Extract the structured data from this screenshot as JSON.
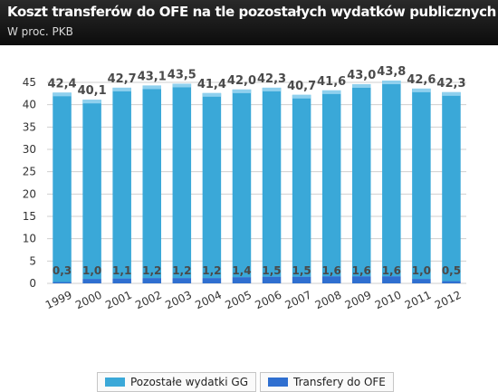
{
  "header": {
    "title": "Koszt transferów do OFE na  tle pozostałych wydatków publicznych",
    "subtitle": "W proc. PKB"
  },
  "chart_data": {
    "type": "bar",
    "stacked": true,
    "categories": [
      "1999",
      "2000",
      "2001",
      "2002",
      "2003",
      "2004",
      "2005",
      "2006",
      "2007",
      "2008",
      "2009",
      "2010",
      "2011",
      "2012"
    ],
    "series": [
      {
        "name": "Pozostałe wydatki GG",
        "color": "#3aa8d8",
        "values": [
          42.4,
          40.1,
          42.7,
          43.1,
          43.5,
          41.4,
          42.0,
          42.3,
          40.7,
          41.6,
          43.0,
          43.8,
          42.6,
          42.3
        ]
      },
      {
        "name": "Transfery do OFE",
        "color": "#2f6fd0",
        "values": [
          0.3,
          1.0,
          1.1,
          1.2,
          1.2,
          1.2,
          1.4,
          1.5,
          1.5,
          1.6,
          1.6,
          1.6,
          1.0,
          0.5
        ]
      }
    ],
    "top_labels": [
      "42,4",
      "40,1",
      "42,7",
      "43,1",
      "43,5",
      "41,4",
      "42,0",
      "42,3",
      "40,7",
      "41,6",
      "43,0",
      "43,8",
      "42,6",
      "42,3"
    ],
    "ofe_labels": [
      "0,3",
      "1,0",
      "1,1",
      "1,2",
      "1,2",
      "1,2",
      "1,4",
      "1,5",
      "1,5",
      "1,6",
      "1,6",
      "1,6",
      "1,0",
      "0,5"
    ],
    "yticks": [
      "0",
      "5",
      "10",
      "15",
      "20",
      "25",
      "30",
      "35",
      "40",
      "45"
    ],
    "ylim": [
      0,
      45
    ],
    "grid": true,
    "legend_position": "bottom"
  },
  "legend": {
    "items": [
      {
        "label": "Pozostałe wydatki GG",
        "color": "#3aa8d8"
      },
      {
        "label": "Transfery do OFE",
        "color": "#2f6fd0"
      }
    ]
  }
}
